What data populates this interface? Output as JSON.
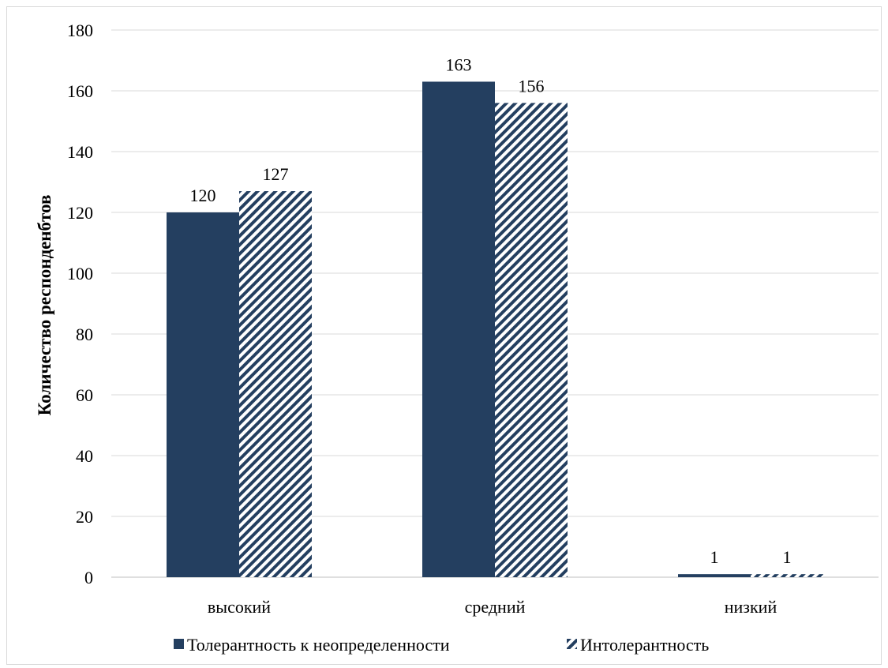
{
  "chart_data": {
    "type": "bar",
    "title": "",
    "xlabel": "",
    "ylabel": "Количество респонденбтов",
    "categories": [
      "высокий",
      "средний",
      "низкий"
    ],
    "series": [
      {
        "name": "Толерантность к неопределенности",
        "values": [
          120,
          163,
          1
        ],
        "color": "#243f60",
        "pattern": "solid"
      },
      {
        "name": "Интолерантность",
        "values": [
          127,
          156,
          1
        ],
        "color": "#243f60",
        "pattern": "diagonal-stripes"
      }
    ],
    "ylim": [
      0,
      180
    ],
    "yticks": [
      0,
      20,
      40,
      60,
      80,
      100,
      120,
      140,
      160,
      180
    ],
    "grid": true,
    "legend": "bottom",
    "data_labels": true
  }
}
